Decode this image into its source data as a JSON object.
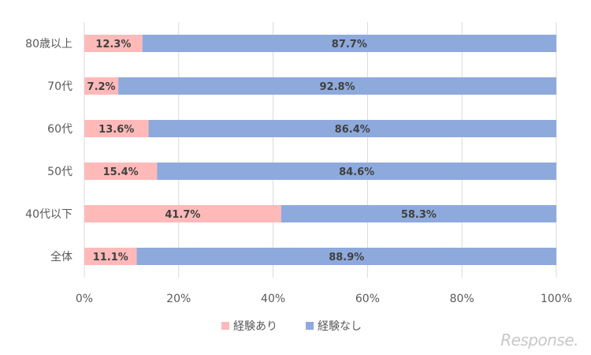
{
  "chart_data": {
    "type": "bar",
    "orientation": "horizontal",
    "stacked": true,
    "categories": [
      "80歳以上",
      "70代",
      "60代",
      "50代",
      "40代以下",
      "全体"
    ],
    "series": [
      {
        "name": "経験あり",
        "color": "#ffb9b9",
        "values": [
          12.3,
          7.2,
          13.6,
          15.4,
          41.7,
          11.1
        ]
      },
      {
        "name": "経験なし",
        "color": "#8eaadc",
        "values": [
          87.7,
          92.8,
          86.4,
          84.6,
          58.3,
          88.9
        ]
      }
    ],
    "xlim": [
      0,
      100
    ],
    "xticks": [
      0,
      20,
      40,
      60,
      80,
      100
    ],
    "xtick_labels": [
      "0%",
      "20%",
      "40%",
      "60%",
      "80%",
      "100%"
    ],
    "value_suffix": "%",
    "grid": true,
    "legend_position": "bottom"
  },
  "watermark": "Response."
}
